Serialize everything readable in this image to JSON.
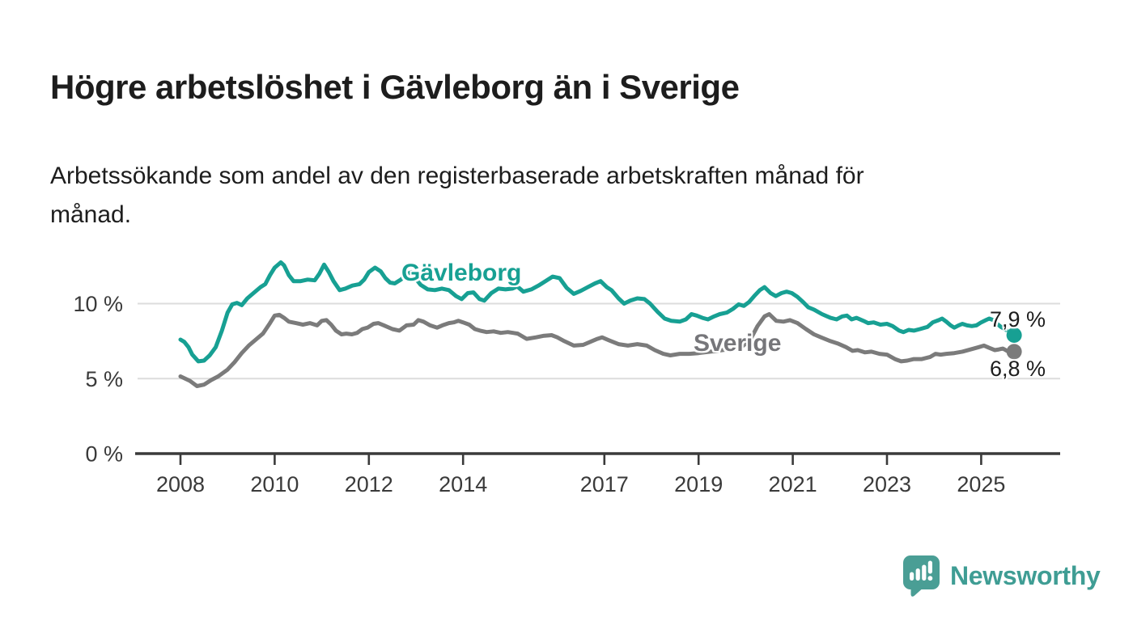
{
  "header": {
    "title": "Högre arbetslöshet i Gävleborg än i Sverige",
    "subtitle": "Arbetssökande som andel av den registerbaserade arbetskraften månad för\nmånad."
  },
  "footer": {
    "brand": "Newsworthy",
    "logo_icon": "bar-chart-speech-bubble-icon"
  },
  "colors": {
    "accent_teal": "#17a093",
    "series_gray": "#7b7b7b",
    "gridline": "#dcdcdc",
    "axis": "#3a3a3a",
    "text": "#1d1d1d",
    "logo_teal": "#4a9e95",
    "logo_text_teal": "#3f9d94"
  },
  "chart_data": {
    "type": "line",
    "title": "Högre arbetslöshet i Gävleborg än i Sverige",
    "subtitle": "Arbetssökande som andel av den registerbaserade arbetskraften månad för månad.",
    "xlabel": "",
    "ylabel": "",
    "grid": "horizontal",
    "legend_position": "inline-labels",
    "xlim": [
      2007.1,
      2026.7
    ],
    "ylim": [
      0,
      13.6
    ],
    "y_ticks": [
      {
        "value": 0,
        "label": "0 %"
      },
      {
        "value": 5,
        "label": "5 %"
      },
      {
        "value": 10,
        "label": "10 %"
      }
    ],
    "x_ticks": [
      {
        "value": 2008,
        "label": "2008"
      },
      {
        "value": 2010,
        "label": "2010"
      },
      {
        "value": 2012,
        "label": "2012"
      },
      {
        "value": 2014,
        "label": "2014"
      },
      {
        "value": 2017,
        "label": "2017"
      },
      {
        "value": 2019,
        "label": "2019"
      },
      {
        "value": 2021,
        "label": "2021"
      },
      {
        "value": 2023,
        "label": "2023"
      },
      {
        "value": 2025,
        "label": "2025"
      }
    ],
    "series": [
      {
        "name": "Gävleborg",
        "color": "#17a093",
        "end": {
          "x": 2025.7,
          "value": 7.9,
          "label": "7,9 %",
          "connector": "dashed",
          "marker": "dot"
        },
        "points": [
          [
            2008.0,
            7.6
          ],
          [
            2008.08,
            7.45
          ],
          [
            2008.17,
            7.1
          ],
          [
            2008.25,
            6.6
          ],
          [
            2008.38,
            6.15
          ],
          [
            2008.5,
            6.2
          ],
          [
            2008.62,
            6.55
          ],
          [
            2008.75,
            7.1
          ],
          [
            2008.88,
            8.2
          ],
          [
            2009.0,
            9.4
          ],
          [
            2009.1,
            9.95
          ],
          [
            2009.2,
            10.05
          ],
          [
            2009.3,
            9.9
          ],
          [
            2009.42,
            10.35
          ],
          [
            2009.55,
            10.7
          ],
          [
            2009.7,
            11.1
          ],
          [
            2009.8,
            11.3
          ],
          [
            2009.9,
            11.9
          ],
          [
            2010.0,
            12.4
          ],
          [
            2010.13,
            12.75
          ],
          [
            2010.2,
            12.55
          ],
          [
            2010.3,
            11.9
          ],
          [
            2010.4,
            11.5
          ],
          [
            2010.55,
            11.5
          ],
          [
            2010.7,
            11.6
          ],
          [
            2010.85,
            11.55
          ],
          [
            2010.95,
            12.0
          ],
          [
            2011.05,
            12.6
          ],
          [
            2011.15,
            12.1
          ],
          [
            2011.25,
            11.5
          ],
          [
            2011.38,
            10.9
          ],
          [
            2011.5,
            11.0
          ],
          [
            2011.65,
            11.2
          ],
          [
            2011.8,
            11.3
          ],
          [
            2011.9,
            11.6
          ],
          [
            2012.0,
            12.1
          ],
          [
            2012.13,
            12.4
          ],
          [
            2012.25,
            12.15
          ],
          [
            2012.35,
            11.7
          ],
          [
            2012.45,
            11.4
          ],
          [
            2012.55,
            11.35
          ],
          [
            2012.68,
            11.6
          ],
          [
            2012.8,
            11.95
          ],
          [
            2012.9,
            12.1
          ],
          [
            2013.0,
            11.65
          ],
          [
            2013.1,
            11.25
          ],
          [
            2013.25,
            10.95
          ],
          [
            2013.4,
            10.9
          ],
          [
            2013.55,
            11.0
          ],
          [
            2013.7,
            10.9
          ],
          [
            2013.85,
            10.5
          ],
          [
            2013.97,
            10.3
          ],
          [
            2014.1,
            10.7
          ],
          [
            2014.22,
            10.75
          ],
          [
            2014.35,
            10.3
          ],
          [
            2014.45,
            10.2
          ],
          [
            2014.6,
            10.7
          ],
          [
            2014.75,
            11.0
          ],
          [
            2014.9,
            10.95
          ],
          [
            2015.05,
            11.0
          ],
          [
            2015.15,
            11.15
          ],
          [
            2015.28,
            10.8
          ],
          [
            2015.45,
            10.95
          ],
          [
            2015.6,
            11.2
          ],
          [
            2015.75,
            11.5
          ],
          [
            2015.9,
            11.8
          ],
          [
            2016.05,
            11.7
          ],
          [
            2016.2,
            11.05
          ],
          [
            2016.35,
            10.65
          ],
          [
            2016.5,
            10.85
          ],
          [
            2016.65,
            11.1
          ],
          [
            2016.8,
            11.35
          ],
          [
            2016.92,
            11.5
          ],
          [
            2017.05,
            11.1
          ],
          [
            2017.15,
            10.9
          ],
          [
            2017.3,
            10.35
          ],
          [
            2017.42,
            10.0
          ],
          [
            2017.55,
            10.2
          ],
          [
            2017.7,
            10.35
          ],
          [
            2017.85,
            10.3
          ],
          [
            2017.97,
            10.0
          ],
          [
            2018.13,
            9.45
          ],
          [
            2018.28,
            9.0
          ],
          [
            2018.42,
            8.85
          ],
          [
            2018.6,
            8.8
          ],
          [
            2018.73,
            8.95
          ],
          [
            2018.85,
            9.3
          ],
          [
            2018.96,
            9.2
          ],
          [
            2019.08,
            9.05
          ],
          [
            2019.2,
            8.95
          ],
          [
            2019.33,
            9.15
          ],
          [
            2019.45,
            9.3
          ],
          [
            2019.6,
            9.4
          ],
          [
            2019.73,
            9.65
          ],
          [
            2019.85,
            9.95
          ],
          [
            2019.96,
            9.85
          ],
          [
            2020.07,
            10.1
          ],
          [
            2020.18,
            10.5
          ],
          [
            2020.3,
            10.9
          ],
          [
            2020.4,
            11.1
          ],
          [
            2020.53,
            10.7
          ],
          [
            2020.64,
            10.5
          ],
          [
            2020.76,
            10.7
          ],
          [
            2020.87,
            10.8
          ],
          [
            2020.98,
            10.7
          ],
          [
            2021.1,
            10.45
          ],
          [
            2021.22,
            10.1
          ],
          [
            2021.33,
            9.75
          ],
          [
            2021.45,
            9.6
          ],
          [
            2021.62,
            9.3
          ],
          [
            2021.8,
            9.05
          ],
          [
            2021.93,
            8.95
          ],
          [
            2022.05,
            9.15
          ],
          [
            2022.15,
            9.2
          ],
          [
            2022.25,
            8.95
          ],
          [
            2022.35,
            9.05
          ],
          [
            2022.5,
            8.85
          ],
          [
            2022.6,
            8.7
          ],
          [
            2022.72,
            8.75
          ],
          [
            2022.86,
            8.6
          ],
          [
            2023.0,
            8.65
          ],
          [
            2023.12,
            8.5
          ],
          [
            2023.26,
            8.2
          ],
          [
            2023.35,
            8.1
          ],
          [
            2023.46,
            8.25
          ],
          [
            2023.57,
            8.2
          ],
          [
            2023.7,
            8.3
          ],
          [
            2023.86,
            8.45
          ],
          [
            2023.97,
            8.75
          ],
          [
            2024.1,
            8.9
          ],
          [
            2024.17,
            9.0
          ],
          [
            2024.26,
            8.8
          ],
          [
            2024.35,
            8.55
          ],
          [
            2024.43,
            8.4
          ],
          [
            2024.52,
            8.55
          ],
          [
            2024.6,
            8.65
          ],
          [
            2024.7,
            8.55
          ],
          [
            2024.8,
            8.5
          ],
          [
            2024.9,
            8.55
          ],
          [
            2025.0,
            8.75
          ],
          [
            2025.1,
            8.9
          ],
          [
            2025.17,
            9.0
          ],
          [
            2025.26,
            8.9
          ],
          [
            2025.34,
            8.65
          ],
          [
            2025.42,
            8.45
          ],
          [
            2025.5,
            8.3
          ]
        ]
      },
      {
        "name": "Sverige",
        "color": "#7b7b7b",
        "end": {
          "x": 2025.7,
          "value": 6.8,
          "label": "6,8 %",
          "connector": "dashed",
          "marker": "dot"
        },
        "points": [
          [
            2008.0,
            5.15
          ],
          [
            2008.1,
            5.0
          ],
          [
            2008.2,
            4.85
          ],
          [
            2008.35,
            4.5
          ],
          [
            2008.5,
            4.6
          ],
          [
            2008.65,
            4.9
          ],
          [
            2008.8,
            5.15
          ],
          [
            2009.0,
            5.6
          ],
          [
            2009.15,
            6.1
          ],
          [
            2009.3,
            6.7
          ],
          [
            2009.45,
            7.2
          ],
          [
            2009.6,
            7.6
          ],
          [
            2009.75,
            8.0
          ],
          [
            2009.9,
            8.7
          ],
          [
            2010.0,
            9.2
          ],
          [
            2010.1,
            9.25
          ],
          [
            2010.2,
            9.05
          ],
          [
            2010.3,
            8.8
          ],
          [
            2010.45,
            8.7
          ],
          [
            2010.6,
            8.6
          ],
          [
            2010.75,
            8.7
          ],
          [
            2010.9,
            8.55
          ],
          [
            2011.0,
            8.85
          ],
          [
            2011.1,
            8.9
          ],
          [
            2011.2,
            8.6
          ],
          [
            2011.3,
            8.2
          ],
          [
            2011.42,
            7.95
          ],
          [
            2011.52,
            8.0
          ],
          [
            2011.64,
            7.95
          ],
          [
            2011.75,
            8.05
          ],
          [
            2011.86,
            8.3
          ],
          [
            2011.97,
            8.4
          ],
          [
            2012.1,
            8.65
          ],
          [
            2012.2,
            8.7
          ],
          [
            2012.32,
            8.55
          ],
          [
            2012.5,
            8.3
          ],
          [
            2012.65,
            8.2
          ],
          [
            2012.8,
            8.55
          ],
          [
            2012.95,
            8.6
          ],
          [
            2013.05,
            8.9
          ],
          [
            2013.16,
            8.8
          ],
          [
            2013.3,
            8.55
          ],
          [
            2013.45,
            8.4
          ],
          [
            2013.56,
            8.55
          ],
          [
            2013.7,
            8.7
          ],
          [
            2013.8,
            8.75
          ],
          [
            2013.9,
            8.85
          ],
          [
            2014.0,
            8.75
          ],
          [
            2014.13,
            8.6
          ],
          [
            2014.25,
            8.3
          ],
          [
            2014.36,
            8.2
          ],
          [
            2014.5,
            8.1
          ],
          [
            2014.65,
            8.15
          ],
          [
            2014.8,
            8.05
          ],
          [
            2014.95,
            8.1
          ],
          [
            2015.16,
            8.0
          ],
          [
            2015.35,
            7.65
          ],
          [
            2015.55,
            7.75
          ],
          [
            2015.7,
            7.85
          ],
          [
            2015.88,
            7.9
          ],
          [
            2016.0,
            7.75
          ],
          [
            2016.15,
            7.5
          ],
          [
            2016.35,
            7.2
          ],
          [
            2016.55,
            7.25
          ],
          [
            2016.7,
            7.45
          ],
          [
            2016.85,
            7.65
          ],
          [
            2016.95,
            7.75
          ],
          [
            2017.1,
            7.55
          ],
          [
            2017.3,
            7.3
          ],
          [
            2017.5,
            7.2
          ],
          [
            2017.7,
            7.3
          ],
          [
            2017.9,
            7.2
          ],
          [
            2018.07,
            6.9
          ],
          [
            2018.25,
            6.65
          ],
          [
            2018.4,
            6.55
          ],
          [
            2018.6,
            6.65
          ],
          [
            2018.8,
            6.65
          ],
          [
            2019.0,
            6.7
          ],
          [
            2019.25,
            6.8
          ],
          [
            2019.5,
            6.9
          ],
          [
            2019.75,
            7.0
          ],
          [
            2019.95,
            7.2
          ],
          [
            2020.1,
            7.6
          ],
          [
            2020.25,
            8.5
          ],
          [
            2020.4,
            9.15
          ],
          [
            2020.5,
            9.3
          ],
          [
            2020.65,
            8.85
          ],
          [
            2020.8,
            8.8
          ],
          [
            2020.94,
            8.9
          ],
          [
            2021.1,
            8.7
          ],
          [
            2021.28,
            8.3
          ],
          [
            2021.45,
            7.95
          ],
          [
            2021.6,
            7.75
          ],
          [
            2021.8,
            7.5
          ],
          [
            2021.95,
            7.35
          ],
          [
            2022.13,
            7.1
          ],
          [
            2022.27,
            6.85
          ],
          [
            2022.38,
            6.9
          ],
          [
            2022.53,
            6.75
          ],
          [
            2022.67,
            6.8
          ],
          [
            2022.84,
            6.65
          ],
          [
            2023.0,
            6.6
          ],
          [
            2023.17,
            6.3
          ],
          [
            2023.3,
            6.15
          ],
          [
            2023.43,
            6.2
          ],
          [
            2023.57,
            6.3
          ],
          [
            2023.74,
            6.3
          ],
          [
            2023.92,
            6.45
          ],
          [
            2024.03,
            6.65
          ],
          [
            2024.14,
            6.6
          ],
          [
            2024.26,
            6.65
          ],
          [
            2024.43,
            6.7
          ],
          [
            2024.6,
            6.8
          ],
          [
            2024.78,
            6.95
          ],
          [
            2024.95,
            7.1
          ],
          [
            2025.06,
            7.2
          ],
          [
            2025.17,
            7.05
          ],
          [
            2025.29,
            6.9
          ],
          [
            2025.38,
            6.95
          ],
          [
            2025.46,
            7.0
          ],
          [
            2025.55,
            6.85
          ]
        ]
      }
    ]
  }
}
